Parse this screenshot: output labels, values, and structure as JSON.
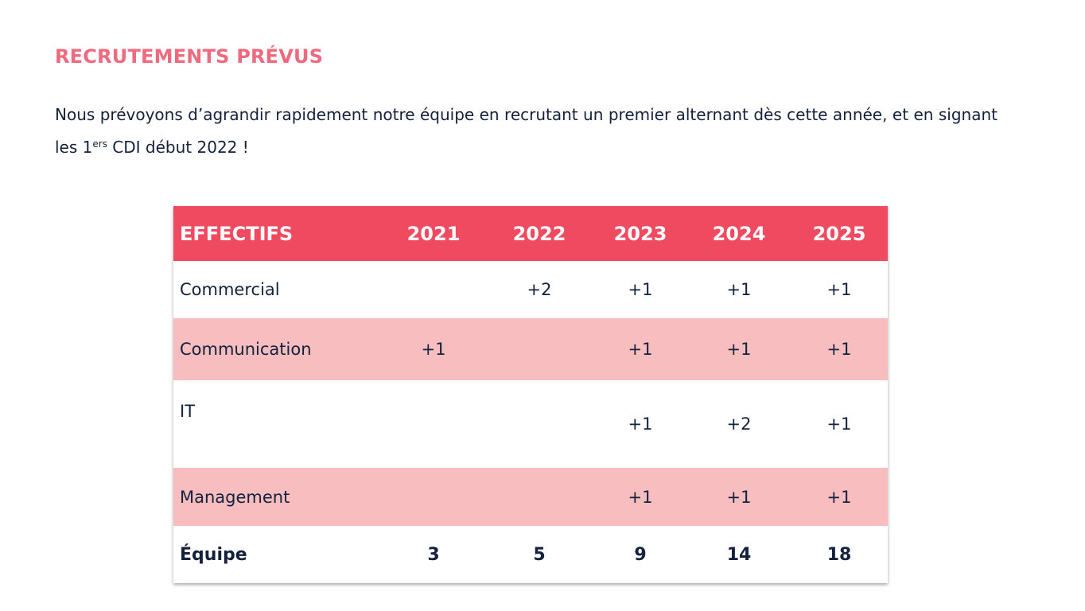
{
  "title": "RECRUTEMENTS PRÉVUS",
  "intro": {
    "part1": "Nous prévoyons d’agrandir rapidement notre équipe en recrutant un premier alternant dès cette année, et en signant les 1",
    "sup": "ers",
    "part2": " CDI début 2022 !"
  },
  "table": {
    "header": [
      "EFFECTIFS",
      "2021",
      "2022",
      "2023",
      "2024",
      "2025"
    ],
    "rows": [
      {
        "label": "Commercial",
        "values": [
          "",
          "+2",
          "+1",
          "+1",
          "+1"
        ]
      },
      {
        "label": "Communication",
        "values": [
          "+1",
          "",
          "+1",
          "+1",
          "+1"
        ]
      },
      {
        "label": "IT",
        "values": [
          "",
          "",
          "+1",
          "+2",
          "+1"
        ]
      },
      {
        "label": "Management",
        "values": [
          "",
          "",
          "+1",
          "+1",
          "+1"
        ]
      }
    ],
    "total": {
      "label": "Équipe",
      "values": [
        "3",
        "5",
        "9",
        "14",
        "18"
      ]
    }
  },
  "colors": {
    "title": "#ee6a7e",
    "header_bg": "#f04a60",
    "stripe_bg": "#f8bdbe",
    "text": "#14213d"
  }
}
